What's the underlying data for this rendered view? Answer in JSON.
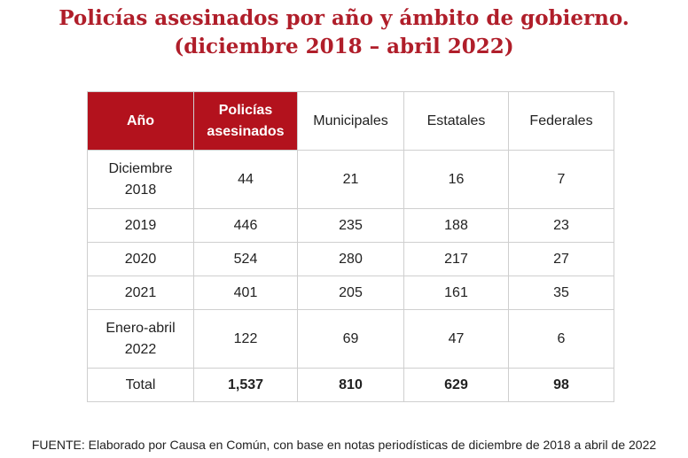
{
  "title": {
    "line1": "Policías asesinados por año y ámbito de gobierno.",
    "line2": "(diciembre 2018 – abril 2022)"
  },
  "table": {
    "headers": [
      "Año",
      "Policías asesinados",
      "Municipales",
      "Estatales",
      "Federales"
    ],
    "header_highlight_color": "#b3121d",
    "rows": [
      [
        "Diciembre 2018",
        "44",
        "21",
        "16",
        "7"
      ],
      [
        "2019",
        "446",
        "235",
        "188",
        "23"
      ],
      [
        "2020",
        "524",
        "280",
        "217",
        "27"
      ],
      [
        "2021",
        "401",
        "205",
        "161",
        "35"
      ],
      [
        "Enero-abril 2022",
        "122",
        "69",
        "47",
        "6"
      ],
      [
        "Total",
        "1,537",
        "810",
        "629",
        "98"
      ]
    ]
  },
  "source": "FUENTE: Elaborado por Causa en Común, con base en notas periodísticas de diciembre de 2018 a abril de 2022"
}
